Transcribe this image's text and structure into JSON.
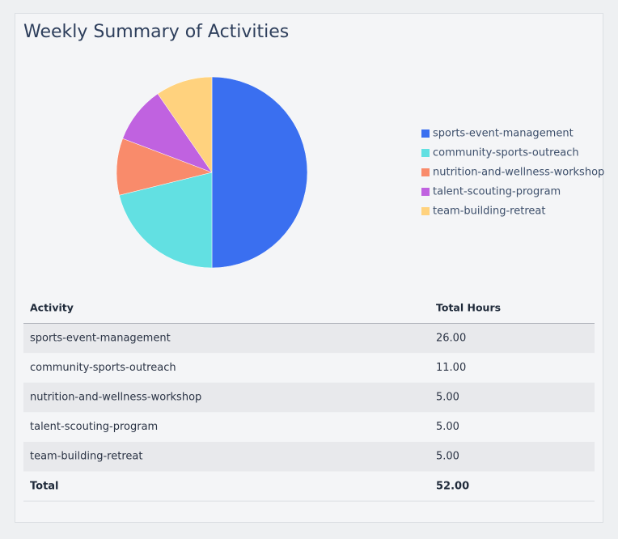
{
  "chart_data": {
    "type": "pie",
    "title": "Weekly Summary of Activities",
    "categories": [
      "sports-event-management",
      "community-sports-outreach",
      "nutrition-and-wellness-workshop",
      "talent-scouting-program",
      "team-building-retreat"
    ],
    "values": [
      26,
      11,
      5,
      5,
      5
    ],
    "colors": [
      "#3a6ff0",
      "#62e0e2",
      "#f98b6b",
      "#c062e0",
      "#ffd27e"
    ],
    "legend": "right"
  },
  "table": {
    "header": [
      "Activity",
      "Total Hours"
    ],
    "rows": [
      [
        "sports-event-management",
        "26.00"
      ],
      [
        "community-sports-outreach",
        "11.00"
      ],
      [
        "nutrition-and-wellness-workshop",
        "5.00"
      ],
      [
        "talent-scouting-program",
        "5.00"
      ],
      [
        "team-building-retreat",
        "5.00"
      ]
    ],
    "total": [
      "Total",
      "52.00"
    ]
  }
}
